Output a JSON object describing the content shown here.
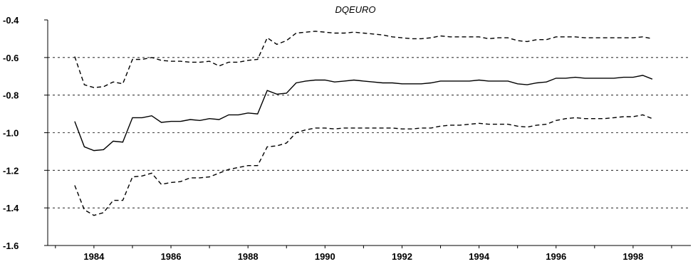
{
  "chart_data": {
    "type": "line",
    "title": "DQEURO",
    "xlabel": "",
    "ylabel": "",
    "xlim": [
      1982.8,
      1999.5
    ],
    "ylim": [
      -1.6,
      -0.4
    ],
    "y_ticks": [
      -0.4,
      -0.6,
      -0.8,
      -1.0,
      -1.2,
      -1.4,
      -1.6
    ],
    "y_tick_labels": [
      "-0.4",
      "-0.6",
      "-0.8",
      "-1.0",
      "-1.2",
      "-1.4",
      "-1.6"
    ],
    "x_ticks": [
      1984,
      1986,
      1988,
      1990,
      1992,
      1994,
      1996,
      1998
    ],
    "x_tick_labels": [
      "1984",
      "1986",
      "1988",
      "1990",
      "1992",
      "1994",
      "1996",
      "1998"
    ],
    "grid": "horizontal-dashed",
    "legend": "none",
    "series": [
      {
        "style": "solid",
        "x": [
          1983.5,
          1983.75,
          1984,
          1984.25,
          1984.5,
          1984.75,
          1985,
          1985.25,
          1985.5,
          1985.75,
          1986,
          1986.25,
          1986.5,
          1986.75,
          1987,
          1987.25,
          1987.5,
          1987.75,
          1988,
          1988.25,
          1988.5,
          1988.75,
          1989,
          1989.25,
          1989.5,
          1989.75,
          1990,
          1990.25,
          1990.5,
          1990.75,
          1991,
          1991.25,
          1991.5,
          1991.75,
          1992,
          1992.25,
          1992.5,
          1992.75,
          1993,
          1993.25,
          1993.5,
          1993.75,
          1994,
          1994.25,
          1994.5,
          1994.75,
          1995,
          1995.25,
          1995.5,
          1995.75,
          1996,
          1996.25,
          1996.5,
          1996.75,
          1997,
          1997.25,
          1997.5,
          1997.75,
          1998,
          1998.25,
          1998.5
        ],
        "values": [
          -0.94,
          -1.075,
          -1.095,
          -1.09,
          -1.045,
          -1.05,
          -0.92,
          -0.92,
          -0.91,
          -0.945,
          -0.94,
          -0.94,
          -0.93,
          -0.935,
          -0.925,
          -0.93,
          -0.905,
          -0.905,
          -0.895,
          -0.9,
          -0.775,
          -0.795,
          -0.79,
          -0.735,
          -0.725,
          -0.72,
          -0.72,
          -0.73,
          -0.725,
          -0.72,
          -0.725,
          -0.73,
          -0.735,
          -0.735,
          -0.74,
          -0.74,
          -0.74,
          -0.735,
          -0.725,
          -0.725,
          -0.725,
          -0.725,
          -0.72,
          -0.725,
          -0.725,
          -0.725,
          -0.74,
          -0.745,
          -0.735,
          -0.73,
          -0.71,
          -0.71,
          -0.705,
          -0.71,
          -0.71,
          -0.71,
          -0.71,
          -0.705,
          -0.705,
          -0.695,
          -0.715
        ]
      },
      {
        "style": "dashed",
        "x": [
          1983.5,
          1983.75,
          1984,
          1984.25,
          1984.5,
          1984.75,
          1985,
          1985.25,
          1985.5,
          1985.75,
          1986,
          1986.25,
          1986.5,
          1986.75,
          1987,
          1987.25,
          1987.5,
          1987.75,
          1988,
          1988.25,
          1988.5,
          1988.75,
          1989,
          1989.25,
          1989.5,
          1989.75,
          1990,
          1990.25,
          1990.5,
          1990.75,
          1991,
          1991.25,
          1991.5,
          1991.75,
          1992,
          1992.25,
          1992.5,
          1992.75,
          1993,
          1993.25,
          1993.5,
          1993.75,
          1994,
          1994.25,
          1994.5,
          1994.75,
          1995,
          1995.25,
          1995.5,
          1995.75,
          1996,
          1996.25,
          1996.5,
          1996.75,
          1997,
          1997.25,
          1997.5,
          1997.75,
          1998,
          1998.25,
          1998.5
        ],
        "values": [
          -0.595,
          -0.745,
          -0.76,
          -0.755,
          -0.73,
          -0.74,
          -0.61,
          -0.61,
          -0.6,
          -0.615,
          -0.62,
          -0.62,
          -0.625,
          -0.625,
          -0.62,
          -0.645,
          -0.625,
          -0.625,
          -0.615,
          -0.61,
          -0.495,
          -0.53,
          -0.51,
          -0.47,
          -0.465,
          -0.46,
          -0.465,
          -0.47,
          -0.47,
          -0.465,
          -0.47,
          -0.475,
          -0.48,
          -0.49,
          -0.495,
          -0.5,
          -0.5,
          -0.495,
          -0.485,
          -0.49,
          -0.49,
          -0.49,
          -0.49,
          -0.5,
          -0.495,
          -0.495,
          -0.51,
          -0.515,
          -0.505,
          -0.505,
          -0.49,
          -0.49,
          -0.49,
          -0.495,
          -0.495,
          -0.495,
          -0.495,
          -0.495,
          -0.495,
          -0.49,
          -0.5
        ]
      },
      {
        "style": "dashed",
        "x": [
          1983.5,
          1983.75,
          1984,
          1984.25,
          1984.5,
          1984.75,
          1985,
          1985.25,
          1985.5,
          1985.75,
          1986,
          1986.25,
          1986.5,
          1986.75,
          1987,
          1987.25,
          1987.5,
          1987.75,
          1988,
          1988.25,
          1988.5,
          1988.75,
          1989,
          1989.25,
          1989.5,
          1989.75,
          1990,
          1990.25,
          1990.5,
          1990.75,
          1991,
          1991.25,
          1991.5,
          1991.75,
          1992,
          1992.25,
          1992.5,
          1992.75,
          1993,
          1993.25,
          1993.5,
          1993.75,
          1994,
          1994.25,
          1994.5,
          1994.75,
          1995,
          1995.25,
          1995.5,
          1995.75,
          1996,
          1996.25,
          1996.5,
          1996.75,
          1997,
          1997.25,
          1997.5,
          1997.75,
          1998,
          1998.25,
          1998.5
        ],
        "values": [
          -1.28,
          -1.41,
          -1.44,
          -1.425,
          -1.36,
          -1.36,
          -1.235,
          -1.23,
          -1.215,
          -1.275,
          -1.265,
          -1.26,
          -1.24,
          -1.24,
          -1.235,
          -1.215,
          -1.195,
          -1.185,
          -1.175,
          -1.175,
          -1.075,
          -1.07,
          -1.055,
          -1.0,
          -0.985,
          -0.975,
          -0.975,
          -0.98,
          -0.975,
          -0.975,
          -0.975,
          -0.975,
          -0.975,
          -0.975,
          -0.98,
          -0.98,
          -0.975,
          -0.975,
          -0.965,
          -0.96,
          -0.96,
          -0.955,
          -0.95,
          -0.955,
          -0.955,
          -0.955,
          -0.965,
          -0.97,
          -0.96,
          -0.955,
          -0.935,
          -0.925,
          -0.92,
          -0.925,
          -0.925,
          -0.925,
          -0.92,
          -0.915,
          -0.915,
          -0.905,
          -0.925
        ]
      }
    ]
  }
}
